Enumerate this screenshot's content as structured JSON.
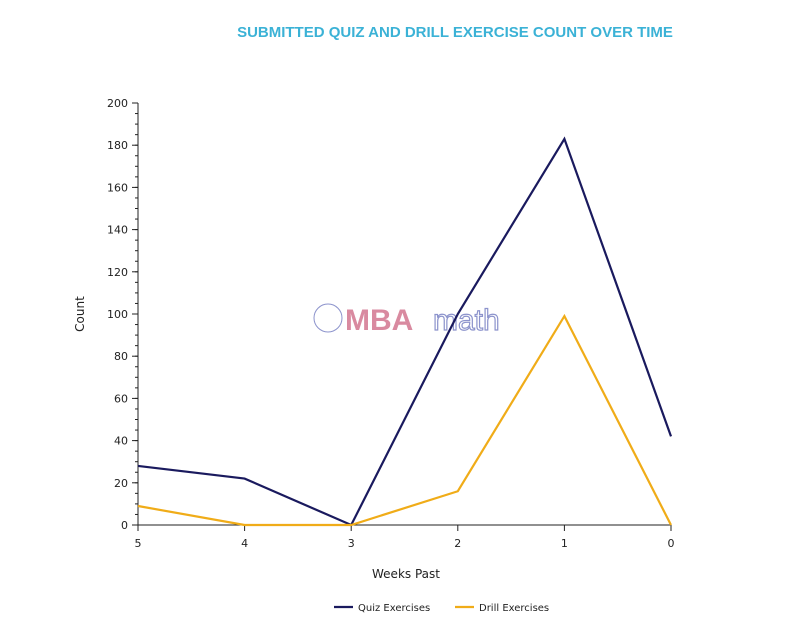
{
  "chart_data": {
    "type": "line",
    "title": "SUBMITTED QUIZ AND DRILL EXERCISE COUNT OVER TIME",
    "xlabel": "Weeks Past",
    "ylabel": "Count",
    "x": [
      "5",
      "4",
      "3",
      "2",
      "1",
      "0"
    ],
    "ylim": [
      0,
      200
    ],
    "yticks": [
      0,
      20,
      40,
      60,
      80,
      100,
      120,
      140,
      160,
      180,
      200
    ],
    "grid": false,
    "legend_position": "bottom",
    "series": [
      {
        "name": "Quiz Exercises",
        "color": "#1a1a5e",
        "values": [
          28,
          22,
          0,
          100,
          183,
          42
        ]
      },
      {
        "name": "Drill Exercises",
        "color": "#f0ac18",
        "values": [
          9,
          0,
          0,
          16,
          99,
          0
        ]
      }
    ]
  },
  "watermark": {
    "brand": "MBA",
    "suffix": "math"
  },
  "colors": {
    "title": "#3bb2d6",
    "axis": "#222222"
  }
}
